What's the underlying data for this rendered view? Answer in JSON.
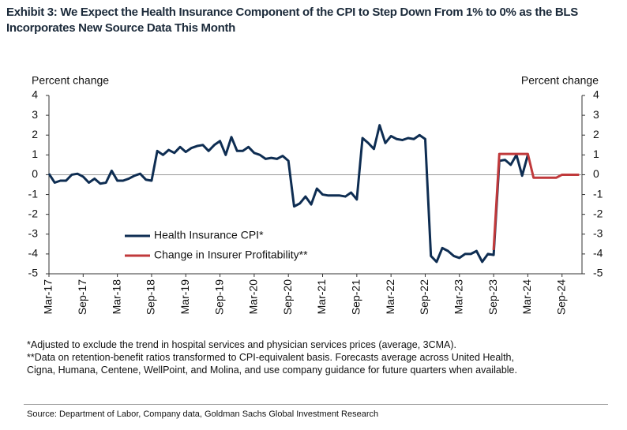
{
  "chart_data": {
    "type": "line",
    "title": "Exhibit 3: We Expect the Health Insurance Component of the CPI to Step Down From 1% to 0% as the BLS Incorporates New Source Data This Month",
    "y_axis_label": "Percent change",
    "y2_axis_label": "Percent change",
    "categories": [
      "Mar-17",
      null,
      null,
      null,
      null,
      null,
      "Sep-17",
      null,
      null,
      null,
      null,
      null,
      "Mar-18",
      null,
      null,
      null,
      null,
      null,
      "Sep-18",
      null,
      null,
      null,
      null,
      null,
      "Mar-19",
      null,
      null,
      null,
      null,
      null,
      "Sep-19",
      null,
      null,
      null,
      null,
      null,
      "Mar-20",
      null,
      null,
      null,
      null,
      null,
      "Sep-20",
      null,
      null,
      null,
      null,
      null,
      "Mar-21",
      null,
      null,
      null,
      null,
      null,
      "Sep-21",
      null,
      null,
      null,
      null,
      null,
      "Mar-22",
      null,
      null,
      null,
      null,
      null,
      "Sep-22",
      null,
      null,
      null,
      null,
      null,
      "Mar-23",
      null,
      null,
      null,
      null,
      null,
      "Sep-23",
      null,
      null,
      null,
      null,
      null,
      "Mar-24",
      null,
      null,
      null,
      null,
      null,
      "Sep-24",
      null,
      null,
      null
    ],
    "series": [
      {
        "name": "Health Insurance CPI*",
        "color": "#0e2d52",
        "values": [
          0.05,
          -0.4,
          -0.3,
          -0.3,
          0.0,
          0.05,
          -0.1,
          -0.4,
          -0.2,
          -0.45,
          -0.4,
          0.2,
          -0.3,
          -0.3,
          -0.2,
          -0.05,
          0.05,
          -0.25,
          -0.3,
          1.2,
          1.0,
          1.25,
          1.1,
          1.4,
          1.15,
          1.35,
          1.45,
          1.5,
          1.2,
          1.5,
          1.7,
          1.0,
          1.9,
          1.2,
          1.2,
          1.4,
          1.1,
          1.0,
          0.8,
          0.85,
          0.8,
          0.95,
          0.7,
          -1.6,
          -1.45,
          -1.1,
          -1.5,
          -0.7,
          -1.0,
          -1.05,
          -1.05,
          -1.05,
          -1.1,
          -0.9,
          -1.25,
          1.85,
          1.6,
          1.3,
          2.5,
          1.6,
          1.95,
          1.8,
          1.75,
          1.85,
          1.8,
          2.0,
          1.8,
          -4.1,
          -4.4,
          -3.7,
          -3.85,
          -4.1,
          -4.2,
          -4.0,
          -4.0,
          -3.85,
          -4.4,
          -4.0,
          -4.05,
          0.7,
          0.75,
          0.5,
          1.0,
          -0.05,
          1.0,
          null,
          null,
          null,
          null,
          null,
          null,
          null,
          null,
          null
        ]
      },
      {
        "name": "Change in Insurer Profitability**",
        "color": "#c0393b",
        "values": [
          null,
          null,
          null,
          null,
          null,
          null,
          null,
          null,
          null,
          null,
          null,
          null,
          null,
          null,
          null,
          null,
          null,
          null,
          null,
          null,
          null,
          null,
          null,
          null,
          null,
          null,
          null,
          null,
          null,
          null,
          null,
          null,
          null,
          null,
          null,
          null,
          null,
          null,
          null,
          null,
          null,
          null,
          null,
          null,
          null,
          null,
          null,
          null,
          null,
          null,
          null,
          null,
          null,
          null,
          null,
          null,
          null,
          null,
          null,
          null,
          null,
          null,
          null,
          null,
          null,
          null,
          null,
          null,
          null,
          null,
          null,
          null,
          null,
          null,
          null,
          null,
          null,
          null,
          -3.8,
          1.05,
          1.05,
          1.05,
          1.05,
          1.05,
          1.05,
          -0.15,
          -0.15,
          -0.15,
          -0.15,
          -0.15,
          0.0,
          0.0,
          0.0,
          0.0
        ]
      }
    ],
    "ylim": [
      -5,
      4
    ],
    "yticks": [
      -5,
      -4,
      -3,
      -2,
      -1,
      0,
      1,
      2,
      3,
      4
    ],
    "y2lim": [
      -5,
      4
    ],
    "y2ticks": [
      -5,
      -4,
      -3,
      -2,
      -1,
      0,
      1,
      2,
      3,
      4
    ],
    "legend": "lower-left",
    "notes": [
      "*Adjusted to exclude the trend in hospital services and physician services prices (average, 3CMA).",
      "**Data on retention-benefit ratios transformed to CPI-equivalent basis. Forecasts average across United Health,",
      "Cigna, Humana, Centene, WellPoint, and Molina, and use company guidance for future quarters when available."
    ],
    "source": "Source: Department of Labor, Company data, Goldman Sachs Global Investment Research"
  }
}
